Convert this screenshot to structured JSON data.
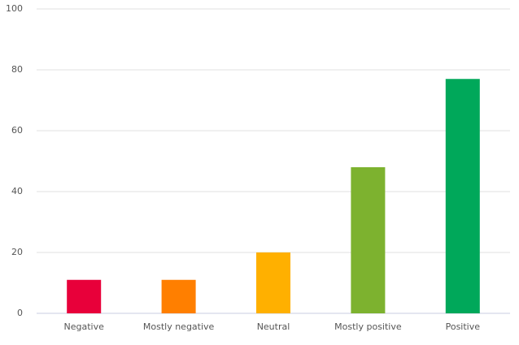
{
  "chart_data": {
    "type": "bar",
    "categories": [
      "Negative",
      "Mostly negative",
      "Neutral",
      "Mostly positive",
      "Positive"
    ],
    "values": [
      11,
      11,
      20,
      48,
      77
    ],
    "colors": [
      "#e8003a",
      "#ff7f00",
      "#ffb000",
      "#7db22f",
      "#00a85a"
    ],
    "ylim": [
      0,
      100
    ],
    "yticks": [
      0,
      20,
      40,
      60,
      80,
      100
    ],
    "grid": true
  }
}
